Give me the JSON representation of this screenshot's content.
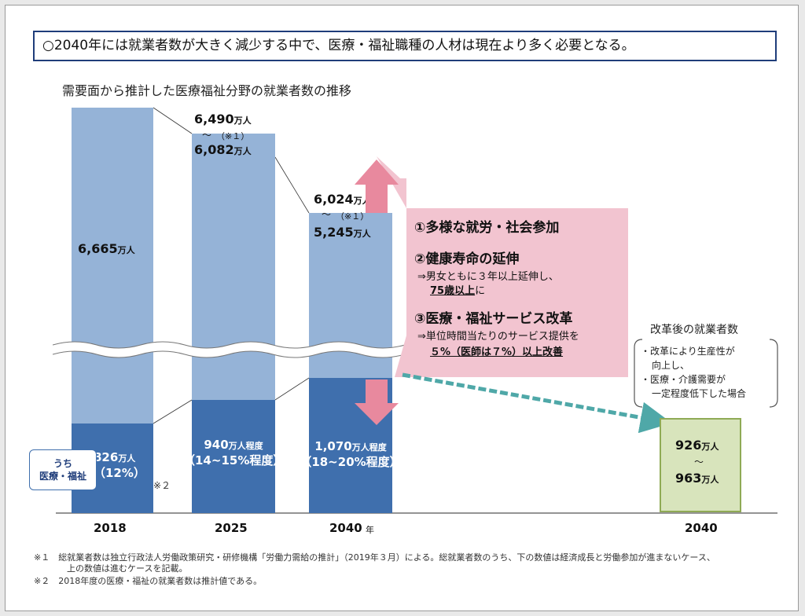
{
  "headline": "○2040年には就業者数が大きく減少する中で、医療・福祉職種の人材は現在より多く必要となる。",
  "chart_data": {
    "type": "bar",
    "title": "需要面から推計した医療福祉分野の就業者数の推移",
    "categories": [
      "2018",
      "2025",
      "2040"
    ],
    "x_unit": "年",
    "series": [
      {
        "name": "総就業者数",
        "values": [
          6665,
          6082,
          5245
        ],
        "upper_values": [
          null,
          6490,
          6024
        ],
        "labels": [
          "6,665",
          "6,082",
          "5,245"
        ],
        "upper_labels": [
          "",
          "6,490",
          "6,024"
        ]
      },
      {
        "name": "医療・福祉",
        "values": [
          826,
          940,
          1070
        ],
        "labels": [
          "826",
          "940",
          "1,070"
        ],
        "shares": [
          "（12%）",
          "（14~15%程度）",
          "（18~20%程度）"
        ]
      }
    ],
    "axis_break": true,
    "reform_scenario": {
      "category": "2040",
      "low": 926,
      "high": 963,
      "low_label": "926",
      "high_label": "963"
    }
  },
  "labels": {
    "unit": "万人",
    "unit_approx": "万人程度",
    "range_mark": "〜",
    "range_note": "（※１）",
    "note2_mark": "※２",
    "callout_line1": "うち",
    "callout_line2": "医療・福祉"
  },
  "measures": {
    "m1": "①多様な就労・社会参加",
    "m2": "②健康寿命の延伸",
    "m2_sub1": "⇒男女ともに３年以上延伸し、",
    "m2_sub2_u": "75歳以上",
    "m2_sub2_t": "に",
    "m3": "③医療・福祉サービス改革",
    "m3_sub1": "⇒単位時間当たりのサービス提供を",
    "m3_sub2_u": "５%（医師は７%）以上改善"
  },
  "reform": {
    "title": "改革後の就業者数",
    "b1": "・改革により生産性が",
    "b2": "向上し、",
    "b3": "・医療・介護需要が",
    "b4": "一定程度低下した場合"
  },
  "footnotes": {
    "n1a": "※１　総就業者数は独立行政法人労働政策研究・研修機構「労働力需給の推計」（2019年３月）による。総就業者数のうち、下の数値は経済成長と労働参加が進まないケース、",
    "n1b": "上の数値は進むケースを記載。",
    "n2": "※２　2018年度の医療・福祉の就業者数は推計値である。"
  },
  "colors": {
    "total_bar": "#95b3d7",
    "welfare_bar": "#3f6fad",
    "arrow_pink": "#e8899e",
    "reform_box": "#d8e4bc",
    "dashed_arrow": "#4fa8a8"
  }
}
